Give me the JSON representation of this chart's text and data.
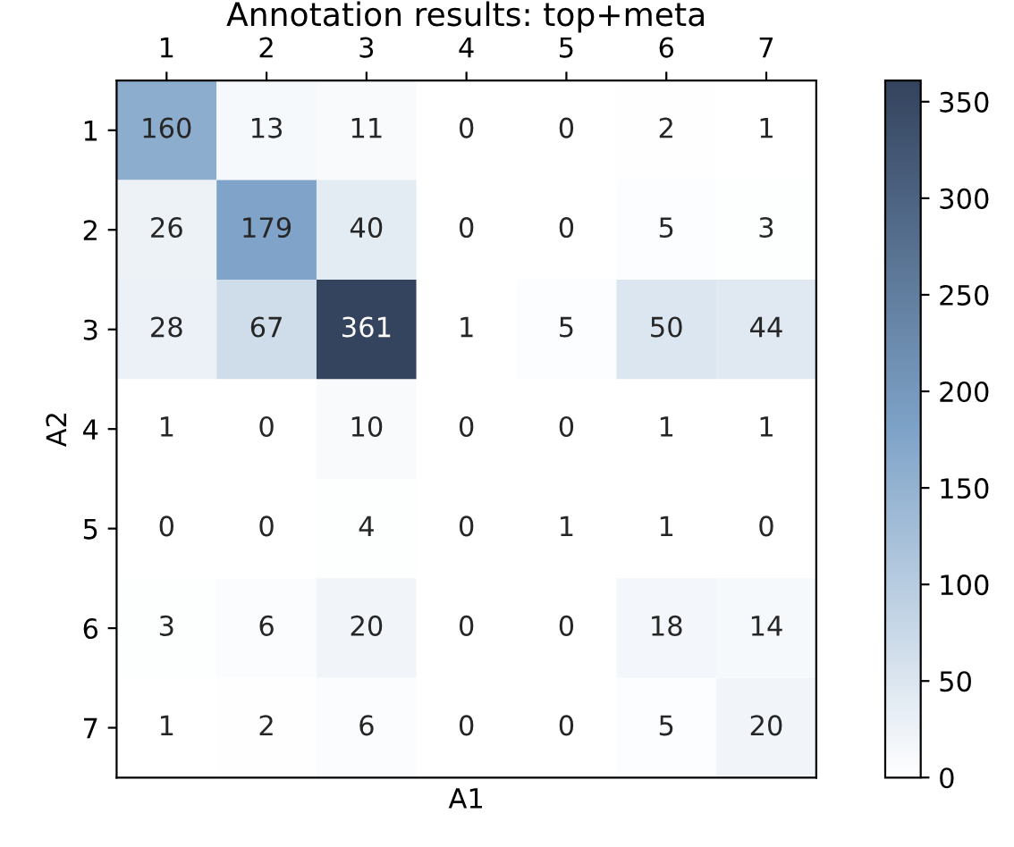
{
  "chart_data": {
    "type": "heatmap",
    "title": "Annotation results: top+meta",
    "xlabel": "A1",
    "ylabel": "A2",
    "categories": [
      "1",
      "2",
      "3",
      "4",
      "5",
      "6",
      "7"
    ],
    "y_categories": [
      "1",
      "2",
      "3",
      "4",
      "5",
      "6",
      "7"
    ],
    "cells": [
      [
        160,
        13,
        11,
        0,
        0,
        2,
        1
      ],
      [
        26,
        179,
        40,
        0,
        0,
        5,
        3
      ],
      [
        28,
        67,
        361,
        1,
        5,
        50,
        44
      ],
      [
        1,
        0,
        10,
        0,
        0,
        1,
        1
      ],
      [
        0,
        0,
        4,
        0,
        1,
        1,
        0
      ],
      [
        3,
        6,
        20,
        0,
        0,
        18,
        14
      ],
      [
        1,
        2,
        6,
        0,
        0,
        5,
        20
      ]
    ],
    "data_labels": true,
    "colors": [
      "#ffffff",
      "#7ea3c8",
      "#34435e"
    ],
    "clim": [
      0,
      361
    ],
    "cticks": [
      0,
      50,
      100,
      150,
      200,
      250,
      300,
      350
    ]
  }
}
